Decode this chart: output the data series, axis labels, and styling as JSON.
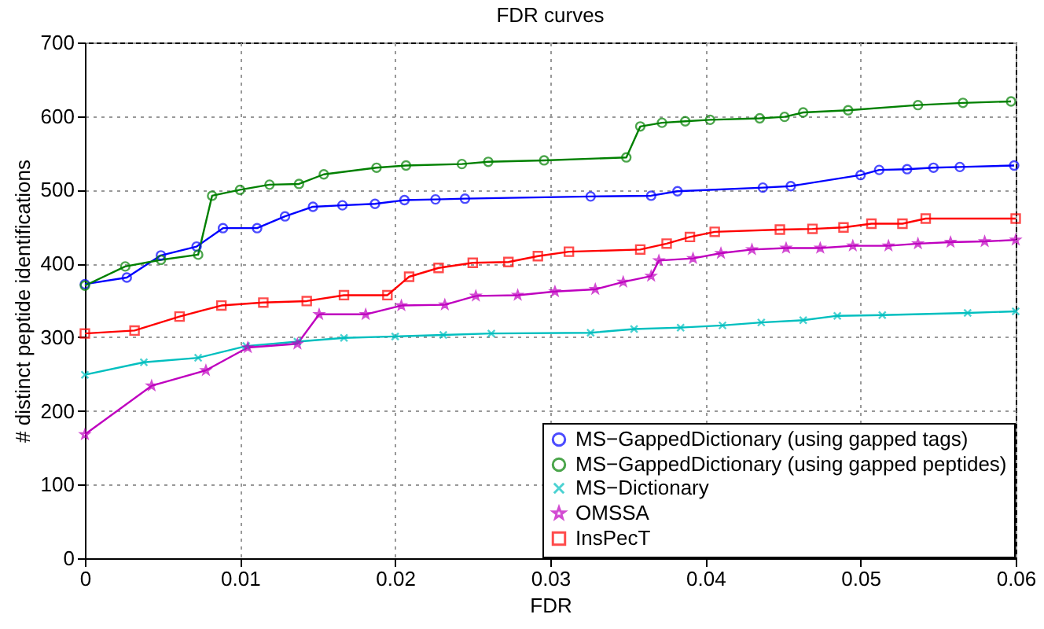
{
  "chart_data": {
    "type": "line",
    "title": "FDR curves",
    "xlabel": "FDR",
    "ylabel": "# distinct peptide identifications",
    "xlim": [
      0,
      0.06
    ],
    "xticks": [
      0,
      0.01,
      0.02,
      0.03,
      0.04,
      0.05,
      0.06
    ],
    "ylim": [
      0,
      700
    ],
    "yticks": [
      0,
      100,
      200,
      300,
      400,
      500,
      600,
      700
    ],
    "grid": true,
    "legend": "bottom right",
    "line_style": "solid",
    "series": [
      {
        "name": "MS−GappedDictionary (using gapped tags)",
        "color": "#0000ff",
        "marker": "circle",
        "x": [
          0,
          0.0027,
          0.0049,
          0.0072,
          0.0089,
          0.0111,
          0.0129,
          0.0147,
          0.0166,
          0.0187,
          0.0206,
          0.0226,
          0.0245,
          0.0326,
          0.0365,
          0.0382,
          0.0437,
          0.0455,
          0.05,
          0.0512,
          0.053,
          0.0547,
          0.0564,
          0.0599
        ],
        "values": [
          372,
          381,
          411,
          423,
          448,
          448,
          464,
          477,
          479,
          481,
          486,
          487,
          488,
          491,
          492,
          498,
          503,
          505,
          520,
          527,
          528,
          530,
          531,
          533
        ]
      },
      {
        "name": "MS−GappedDictionary (using gapped peptides)",
        "color": "#008000",
        "marker": "circle",
        "x": [
          0,
          0.0026,
          0.0049,
          0.0073,
          0.0082,
          0.01,
          0.0119,
          0.0138,
          0.0154,
          0.0188,
          0.0207,
          0.0243,
          0.026,
          0.0296,
          0.0349,
          0.0358,
          0.0372,
          0.0387,
          0.0403,
          0.0435,
          0.0451,
          0.0463,
          0.0492,
          0.0537,
          0.0566,
          0.0597
        ],
        "values": [
          370,
          396,
          405,
          412,
          492,
          500,
          507,
          508,
          521,
          530,
          533,
          535,
          538,
          540,
          544,
          586,
          591,
          593,
          595,
          597,
          599,
          605,
          608,
          615,
          618,
          620
        ]
      },
      {
        "name": "MS−Dictionary",
        "color": "#00bfbf",
        "marker": "cross",
        "x": [
          0,
          0.0038,
          0.0073,
          0.0104,
          0.0137,
          0.0167,
          0.02,
          0.0231,
          0.0262,
          0.0326,
          0.0354,
          0.0384,
          0.0411,
          0.0436,
          0.0463,
          0.0485,
          0.0514,
          0.0569,
          0.06
        ],
        "values": [
          249,
          266,
          272,
          288,
          294,
          299,
          301,
          303,
          305,
          306,
          311,
          313,
          316,
          320,
          323,
          329,
          330,
          333,
          335
        ]
      },
      {
        "name": "OMSSA",
        "color": "#bf00bf",
        "marker": "star",
        "x": [
          0,
          0.0043,
          0.0078,
          0.0105,
          0.0137,
          0.0151,
          0.0181,
          0.0204,
          0.0232,
          0.0252,
          0.0279,
          0.0303,
          0.0329,
          0.0347,
          0.0365,
          0.037,
          0.0392,
          0.041,
          0.043,
          0.0452,
          0.0474,
          0.0495,
          0.0518,
          0.0537,
          0.0558,
          0.058,
          0.06
        ],
        "values": [
          168,
          234,
          255,
          286,
          291,
          331,
          331,
          343,
          344,
          356,
          357,
          362,
          365,
          375,
          383,
          404,
          407,
          414,
          419,
          421,
          421,
          424,
          424,
          427,
          429,
          430,
          432
        ]
      },
      {
        "name": "InsPecT",
        "color": "#ff0000",
        "marker": "square",
        "x": [
          0,
          0.0032,
          0.0061,
          0.0088,
          0.0115,
          0.0143,
          0.0167,
          0.0195,
          0.0209,
          0.0228,
          0.025,
          0.0273,
          0.0292,
          0.0312,
          0.0358,
          0.0375,
          0.039,
          0.0406,
          0.0448,
          0.0469,
          0.0489,
          0.0507,
          0.0527,
          0.0542,
          0.06
        ],
        "values": [
          305,
          309,
          328,
          343,
          347,
          349,
          357,
          357,
          382,
          394,
          401,
          402,
          410,
          416,
          419,
          427,
          436,
          443,
          446,
          447,
          449,
          454,
          454,
          461,
          461
        ]
      }
    ]
  }
}
